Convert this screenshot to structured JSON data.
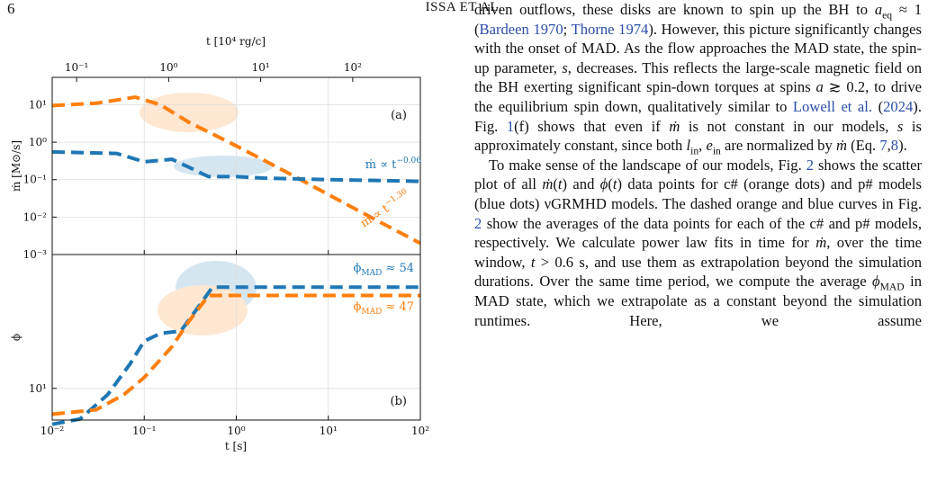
{
  "header": {
    "page": "6",
    "running_title": "ISSA ET AL."
  },
  "figure": {
    "top_axis_label": "t [10⁴ rg/c]",
    "x_label": "t [s]",
    "panels": [
      {
        "type": "line",
        "log_x": true,
        "log_y": true,
        "grid": true,
        "y_label": "ṁ [M⊙/s]",
        "xlim": [
          0.01,
          100
        ],
        "xticks": [
          0.01,
          0.1,
          1,
          10,
          100
        ],
        "x2lim": [
          0.0543,
          543
        ],
        "x2ticks": [
          {
            "value": 0.1,
            "label": "10⁻¹"
          },
          {
            "value": 1,
            "label": "10⁰"
          },
          {
            "value": 10,
            "label": "10¹"
          },
          {
            "value": 100,
            "label": "10²"
          }
        ],
        "ylim": [
          0.001,
          54
        ],
        "yticks": [
          {
            "value": 0.001,
            "label": "10⁻³"
          },
          {
            "value": 0.01,
            "label": "10⁻²"
          },
          {
            "value": 0.1,
            "label": "10⁻¹"
          },
          {
            "value": 1,
            "label": "10⁰"
          },
          {
            "value": 10,
            "label": "10¹"
          }
        ],
        "series": [
          {
            "color": "#ff7f0e",
            "x": [
              0.01,
              0.03,
              0.08,
              0.15,
              0.3,
              0.6,
              1,
              2,
              5,
              10,
              30,
              100
            ],
            "values": [
              9.5,
              11,
              16,
              10,
              3.5,
              1.5,
              0.8,
              0.33,
              0.1,
              0.04,
              0.0095,
              0.002
            ]
          },
          {
            "color": "#1f77b4",
            "x": [
              0.01,
              0.05,
              0.1,
              0.2,
              0.3,
              0.5,
              1,
              2,
              10,
              100
            ],
            "values": [
              0.55,
              0.5,
              0.3,
              0.35,
              0.22,
              0.12,
              0.12,
              0.11,
              0.1,
              0.09
            ]
          }
        ],
        "annotations": [
          [
            {
              "text": "(a)"
            }
          ],
          [
            {
              "text": "ṁ ∝ t"
            },
            {
              "text": "−0.06",
              "style": "sup"
            }
          ],
          [
            {
              "text": "ṁ ∝ t"
            },
            {
              "text": "−1.30",
              "style": "sup"
            }
          ]
        ]
      },
      {
        "type": "line",
        "log_x": true,
        "log_y": true,
        "grid": true,
        "y_label": "ϕ",
        "xlim": [
          0.01,
          100
        ],
        "xticks": [
          {
            "value": 0.01,
            "label": "10⁻²"
          },
          {
            "value": 0.1,
            "label": "10⁻¹"
          },
          {
            "value": 1,
            "label": "10⁰"
          },
          {
            "value": 10,
            "label": "10¹"
          },
          {
            "value": 100,
            "label": "10²"
          }
        ],
        "ylim": [
          5.9,
          93
        ],
        "yticks": [
          {
            "value": 10,
            "label": "10¹"
          }
        ],
        "series": [
          {
            "color": "#1f77b4",
            "x": [
              0.01,
              0.02,
              0.04,
              0.07,
              0.1,
              0.15,
              0.25,
              0.4,
              0.55,
              100
            ],
            "values": [
              5.5,
              6,
              9,
              15,
              22,
              25,
              26,
              40,
              54,
              54
            ]
          },
          {
            "color": "#ff7f0e",
            "x": [
              0.01,
              0.03,
              0.06,
              0.1,
              0.2,
              0.3,
              0.5,
              100
            ],
            "values": [
              6.5,
              7,
              9,
              12,
              20,
              30,
              47,
              47
            ]
          }
        ],
        "annotations": [
          [
            {
              "text": "(b)"
            }
          ],
          [
            {
              "text": "ϕ"
            },
            {
              "text": "MAD",
              "style": "sub"
            },
            {
              "text": " ≈ 54"
            }
          ],
          [
            {
              "text": "ϕ"
            },
            {
              "text": "MAD",
              "style": "sub"
            },
            {
              "text": " ≈ 47"
            }
          ]
        ]
      }
    ]
  },
  "paragraphs": [
    {
      "runs": [
        "driven outflows, these disks are known to spin up the BH to ",
        {
          "text": "a",
          "style": "it"
        },
        {
          "text": "eq",
          "style": "sub"
        },
        " ≈ 1 (",
        {
          "text": "Bardeen 1970",
          "style": "link"
        },
        "; ",
        {
          "text": "Thorne 1974",
          "style": "link"
        },
        "). However, this picture significantly changes with the onset of MAD. As the flow approaches the MAD state, the spin-up parameter, ",
        {
          "text": "s",
          "style": "it"
        },
        ", decreases. This reflects the large-scale magnetic field on the BH exerting significant spin-down torques at spins ",
        {
          "text": "a",
          "style": "it"
        },
        " ≳ 0.2, to drive the equilibrium spin down, qualitatively similar to ",
        {
          "text": "Lowell et al.",
          "style": "link"
        },
        " (",
        {
          "text": "2024",
          "style": "link"
        },
        "). Fig. ",
        {
          "text": "1",
          "style": "link"
        },
        "(f) shows that even if ",
        {
          "text": "ṁ",
          "style": "it"
        },
        " is not constant in our models, ",
        {
          "text": "s",
          "style": "it"
        },
        " is approximately constant, since both ",
        {
          "text": "l",
          "style": "it"
        },
        {
          "text": "in",
          "style": "sub"
        },
        ", ",
        {
          "text": "e",
          "style": "it"
        },
        {
          "text": "in",
          "style": "sub"
        },
        " are normalized by ",
        {
          "text": "ṁ",
          "style": "it"
        },
        " (Eq. ",
        {
          "text": "7",
          "style": "link"
        },
        ",",
        {
          "text": "8",
          "style": "link"
        },
        ")."
      ]
    },
    {
      "runs": [
        "To make sense of the landscape of our models, Fig. ",
        {
          "text": "2",
          "style": "link"
        },
        " shows the scatter plot of all ",
        {
          "text": "ṁ",
          "style": "it"
        },
        "(",
        {
          "text": "t",
          "style": "it"
        },
        ") and ",
        {
          "text": "ϕ",
          "style": "it"
        },
        "(",
        {
          "text": "t",
          "style": "it"
        },
        ") data points for c# (orange dots) and p# models (blue dots) νGRMHD models. The dashed orange and blue curves in Fig. ",
        {
          "text": "2",
          "style": "link"
        },
        " show the averages of the data points for each of the c# and p# models, respectively. We calculate power law fits in time for ",
        {
          "text": "ṁ",
          "style": "it"
        },
        ", over the time window, ",
        {
          "text": "t",
          "style": "it"
        },
        " > 0.6 s, and use them as extrapolation beyond the simulation durations. Over the same time period, we compute the average ",
        {
          "text": "ϕ",
          "style": "it"
        },
        {
          "text": "MAD",
          "style": "sub"
        },
        " in MAD state, which we extrapolate as a constant beyond the simulation runtimes. Here, we assume"
      ]
    }
  ]
}
